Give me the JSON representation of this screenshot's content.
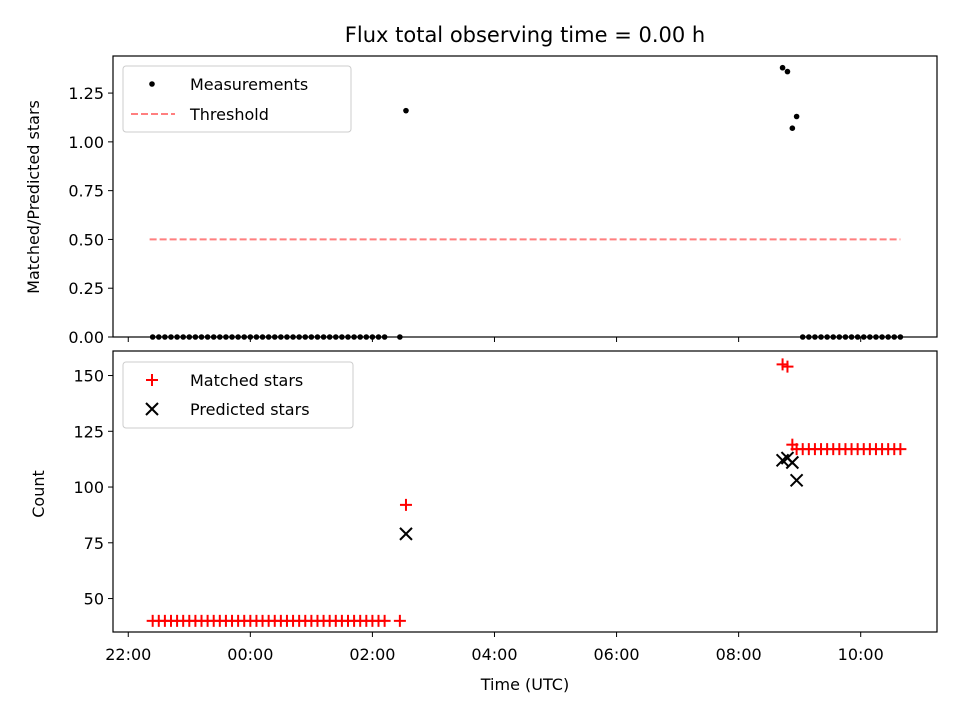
{
  "chart_data": [
    {
      "type": "scatter",
      "title": "Flux total observing time = 0.00 h",
      "xlabel": "",
      "ylabel": "Matched/Predicted stars",
      "ylim": [
        0,
        1.44
      ],
      "yticks": [
        "0.00",
        "0.25",
        "0.50",
        "0.75",
        "1.00",
        "1.25"
      ],
      "ytick_values": [
        0,
        0.25,
        0.5,
        0.75,
        1.0,
        1.25
      ],
      "legend_position": "top-left",
      "series": [
        {
          "name": "Measurements",
          "marker": "dot",
          "color": "#000000",
          "x_hours": [
            -1.6,
            -1.5,
            -1.4,
            -1.3,
            -1.2,
            -1.1,
            -1.0,
            -0.9,
            -0.8,
            -0.7,
            -0.6,
            -0.5,
            -0.4,
            -0.3,
            -0.2,
            -0.1,
            0.0,
            0.1,
            0.2,
            0.3,
            0.4,
            0.5,
            0.6,
            0.7,
            0.8,
            0.9,
            1.0,
            1.1,
            1.2,
            1.3,
            1.4,
            1.5,
            1.6,
            1.7,
            1.8,
            1.9,
            2.0,
            2.1,
            2.2,
            2.45,
            2.55,
            8.72,
            8.8,
            8.88,
            8.95,
            9.05,
            9.15,
            9.25,
            9.35,
            9.45,
            9.55,
            9.65,
            9.75,
            9.85,
            9.95,
            10.05,
            10.15,
            10.25,
            10.35,
            10.45,
            10.55,
            10.65
          ],
          "values": [
            0,
            0,
            0,
            0,
            0,
            0,
            0,
            0,
            0,
            0,
            0,
            0,
            0,
            0,
            0,
            0,
            0,
            0,
            0,
            0,
            0,
            0,
            0,
            0,
            0,
            0,
            0,
            0,
            0,
            0,
            0,
            0,
            0,
            0,
            0,
            0,
            0,
            0,
            0,
            0,
            1.16,
            1.38,
            1.36,
            1.07,
            1.13,
            0,
            0,
            0,
            0,
            0,
            0,
            0,
            0,
            0,
            0,
            0,
            0,
            0,
            0,
            0,
            0,
            0
          ]
        },
        {
          "name": "Threshold",
          "style": "dashed",
          "color": "#ff7f7f",
          "x_hours": [
            -1.65,
            10.65
          ],
          "values": [
            0.5,
            0.5
          ]
        }
      ]
    },
    {
      "type": "scatter",
      "title": "",
      "xlabel": "Time (UTC)",
      "ylabel": "Count",
      "ylim": [
        35,
        161
      ],
      "yticks": [
        "50",
        "75",
        "100",
        "125",
        "150"
      ],
      "ytick_values": [
        50,
        75,
        100,
        125,
        150
      ],
      "x_range_hours": [
        -2.25,
        11.25
      ],
      "xticks": [
        "22:00",
        "00:00",
        "02:00",
        "04:00",
        "06:00",
        "08:00",
        "10:00"
      ],
      "xtick_hours": [
        -2,
        0,
        2,
        4,
        6,
        8,
        10
      ],
      "legend_position": "top-left",
      "series": [
        {
          "name": "Matched stars",
          "marker": "plus",
          "color": "#ff0000",
          "x_hours": [
            -1.6,
            -1.5,
            -1.4,
            -1.3,
            -1.2,
            -1.1,
            -1.0,
            -0.9,
            -0.8,
            -0.7,
            -0.6,
            -0.5,
            -0.4,
            -0.3,
            -0.2,
            -0.1,
            0.0,
            0.1,
            0.2,
            0.3,
            0.4,
            0.5,
            0.6,
            0.7,
            0.8,
            0.9,
            1.0,
            1.1,
            1.2,
            1.3,
            1.4,
            1.5,
            1.6,
            1.7,
            1.8,
            1.9,
            2.0,
            2.1,
            2.2,
            2.45,
            2.55,
            8.72,
            8.8,
            8.88,
            8.95,
            9.05,
            9.15,
            9.25,
            9.35,
            9.45,
            9.55,
            9.65,
            9.75,
            9.85,
            9.95,
            10.05,
            10.15,
            10.25,
            10.35,
            10.45,
            10.55,
            10.65
          ],
          "values": [
            40,
            40,
            40,
            40,
            40,
            40,
            40,
            40,
            40,
            40,
            40,
            40,
            40,
            40,
            40,
            40,
            40,
            40,
            40,
            40,
            40,
            40,
            40,
            40,
            40,
            40,
            40,
            40,
            40,
            40,
            40,
            40,
            40,
            40,
            40,
            40,
            40,
            40,
            40,
            40,
            92,
            155,
            154,
            119,
            117,
            117,
            117,
            117,
            117,
            117,
            117,
            117,
            117,
            117,
            117,
            117,
            117,
            117,
            117,
            117,
            117,
            117
          ]
        },
        {
          "name": "Predicted stars",
          "marker": "x",
          "color": "#000000",
          "x_hours": [
            2.55,
            8.72,
            8.8,
            8.88,
            8.95
          ],
          "values": [
            79,
            112,
            113,
            111,
            103
          ]
        }
      ]
    }
  ]
}
